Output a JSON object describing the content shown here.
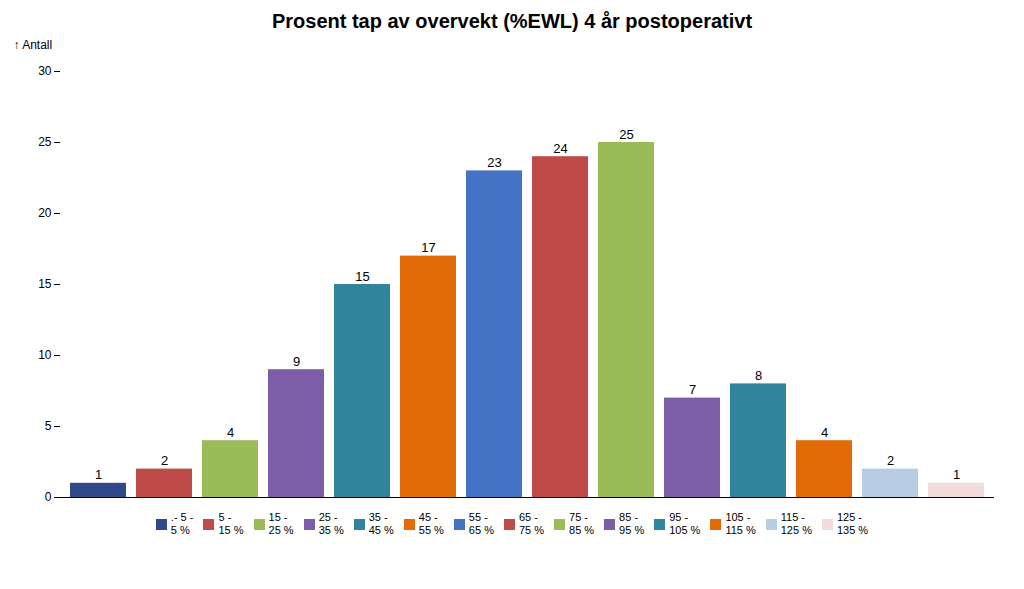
{
  "chart_data": {
    "type": "bar",
    "title": "Prosent tap av overvekt (%EWL) 4 år postoperativt",
    "ylabel": "Antall",
    "categories": [
      ".- 5 -\n5 %",
      "5 -\n15 %",
      "15 -\n25 %",
      "25 -\n35 %",
      "35 -\n45 %",
      "45 -\n55 %",
      "55 -\n65 %",
      "65 -\n75 %",
      "75 -\n85 %",
      "85 -\n95 %",
      "95 -\n105 %",
      "105 -\n115 %",
      "115 -\n125 %",
      "125 -\n135 %"
    ],
    "values": [
      1,
      2,
      4,
      9,
      15,
      17,
      23,
      24,
      25,
      7,
      8,
      4,
      2,
      1
    ],
    "colors": [
      "#2E4A8B",
      "#BE4B48",
      "#9BBB59",
      "#7B5EA7",
      "#31849B",
      "#E36C09",
      "#4472C4",
      "#BE4B48",
      "#9BBB59",
      "#7B5EA7",
      "#31849B",
      "#E36C09",
      "#B8CCE4",
      "#F2DCDB"
    ],
    "ylim": [
      0,
      30
    ],
    "yticks": [
      0,
      5,
      10,
      15,
      20,
      25,
      30
    ],
    "data_labels": true,
    "tick_labels": "y",
    "legend": "bottom",
    "grid": false
  }
}
